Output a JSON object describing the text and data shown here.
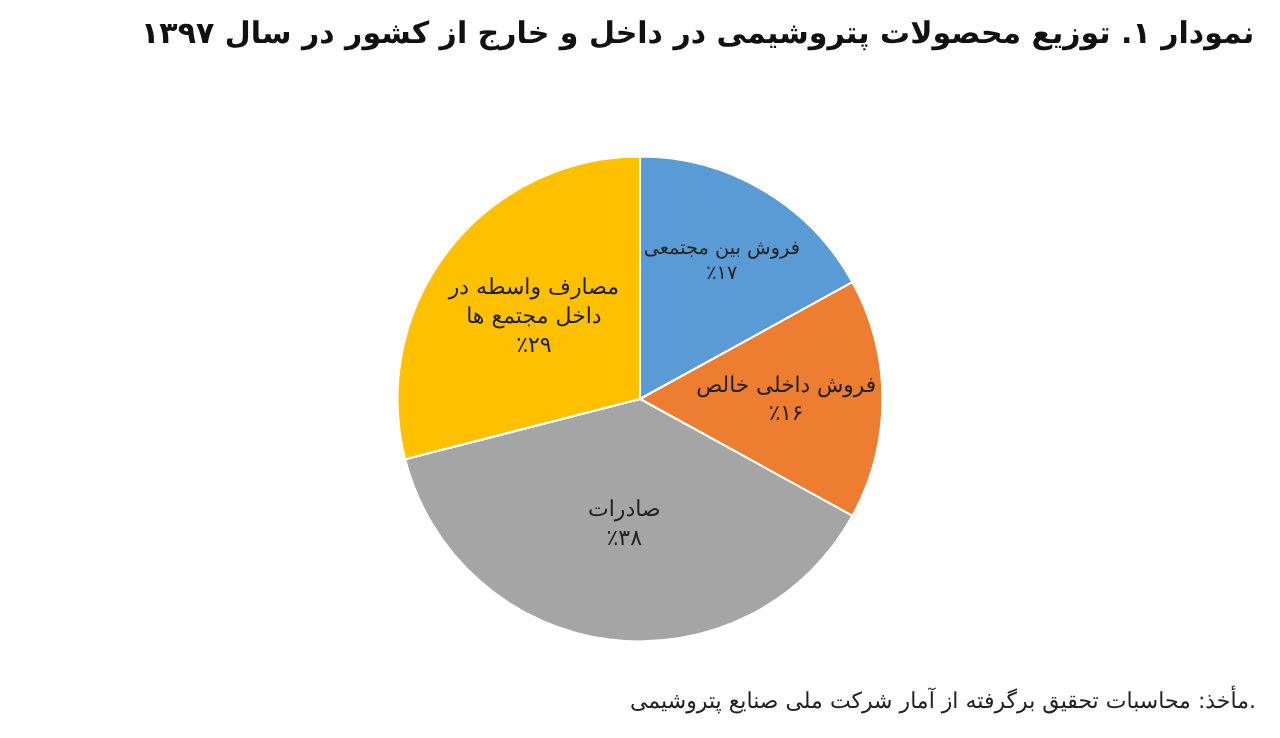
{
  "chart_data": {
    "type": "pie",
    "title": "نمودار ۱. توزیع محصولات پتروشیمی در داخل و خارج از کشور در سال ۱۳۹۷",
    "categories": [
      "فروش بین مجتمعی",
      "فروش داخلی خالص",
      "صادرات",
      "مصارف واسطه در داخل مجتمع ها"
    ],
    "values": [
      17,
      16,
      38,
      29
    ],
    "value_labels": [
      "٪۱۷",
      "٪۱۶",
      "٪۳۸",
      "٪۲۹"
    ],
    "colors": [
      "#5b9bd5",
      "#ed7d31",
      "#a5a5a5",
      "#ffc000"
    ],
    "legend": false,
    "annotations": [
      "مأخذ: محاسبات تحقیق برگرفته از آمار شرکت ملی صنایع پتروشیمی."
    ]
  }
}
